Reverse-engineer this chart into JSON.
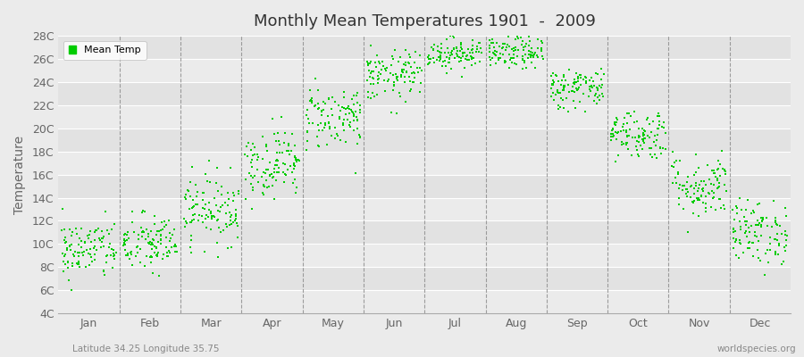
{
  "title": "Monthly Mean Temperatures 1901  -  2009",
  "ylabel": "Temperature",
  "xlabel_labels": [
    "Jan",
    "Feb",
    "Mar",
    "Apr",
    "May",
    "Jun",
    "Jul",
    "Aug",
    "Sep",
    "Oct",
    "Nov",
    "Dec"
  ],
  "ytick_labels": [
    "4C",
    "6C",
    "8C",
    "10C",
    "12C",
    "14C",
    "16C",
    "18C",
    "20C",
    "22C",
    "24C",
    "26C",
    "28C"
  ],
  "ytick_values": [
    4,
    6,
    8,
    10,
    12,
    14,
    16,
    18,
    20,
    22,
    24,
    26,
    28
  ],
  "ylim": [
    4,
    28
  ],
  "xlim": [
    0,
    12
  ],
  "dot_color": "#00cc00",
  "dot_size": 3,
  "background_color": "#ebebeb",
  "band_color_dark": "#e2e2e2",
  "band_color_light": "#ebebeb",
  "grid_color": "#ffffff",
  "dashed_color": "#888888",
  "legend_label": "Mean Temp",
  "subtitle_left": "Latitude 34.25 Longitude 35.75",
  "subtitle_right": "worldspecies.org",
  "monthly_means": [
    9.5,
    10.0,
    13.0,
    17.0,
    21.0,
    24.5,
    26.5,
    26.5,
    23.5,
    19.5,
    15.0,
    11.0
  ],
  "monthly_stds": [
    1.3,
    1.3,
    1.5,
    1.5,
    1.4,
    1.1,
    0.7,
    0.7,
    0.9,
    1.1,
    1.4,
    1.4
  ],
  "n_years": 109
}
